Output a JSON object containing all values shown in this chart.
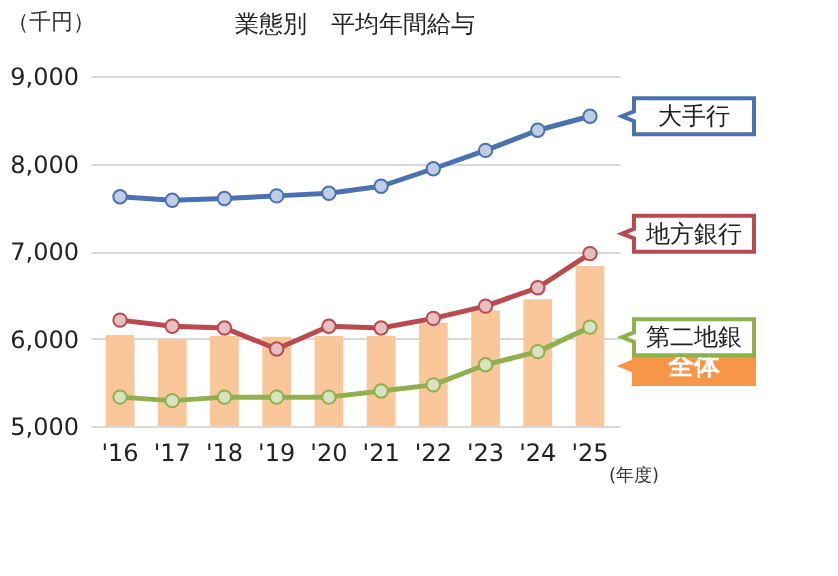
{
  "chart_data": {
    "type": "line",
    "title": "業態別　平均年間給与",
    "ylabel": "（千円）",
    "xlabel": "(年度)",
    "categories": [
      "'16",
      "'17",
      "'18",
      "'19",
      "'20",
      "'21",
      "'22",
      "'23",
      "'24",
      "'25"
    ],
    "series": [
      {
        "name": "全体",
        "type": "bar",
        "color": "#f9c79a",
        "values": [
          6040,
          5990,
          6030,
          6020,
          6030,
          6030,
          6180,
          6320,
          6450,
          6830
        ]
      },
      {
        "name": "大手行",
        "color": "#4a72b0",
        "values": [
          7620,
          7580,
          7600,
          7630,
          7660,
          7740,
          7940,
          8150,
          8380,
          8540
        ]
      },
      {
        "name": "地方銀行",
        "color": "#b94a4f",
        "values": [
          6210,
          6140,
          6120,
          5880,
          6140,
          6120,
          6230,
          6370,
          6580,
          6970
        ]
      },
      {
        "name": "第二地銀",
        "color": "#8fb04c",
        "values": [
          5330,
          5290,
          5330,
          5330,
          5330,
          5400,
          5470,
          5700,
          5850,
          6130
        ]
      }
    ],
    "ylim": [
      5000,
      9000
    ],
    "yticks": [
      {
        "value": 5000,
        "label": "5,000"
      },
      {
        "value": 6000,
        "label": "6,000"
      },
      {
        "value": 7000,
        "label": "7,000"
      },
      {
        "value": 8000,
        "label": "8,000"
      },
      {
        "value": 9000,
        "label": "9,000"
      }
    ],
    "grid": "y",
    "marker": "circle",
    "line_style": "solid"
  }
}
